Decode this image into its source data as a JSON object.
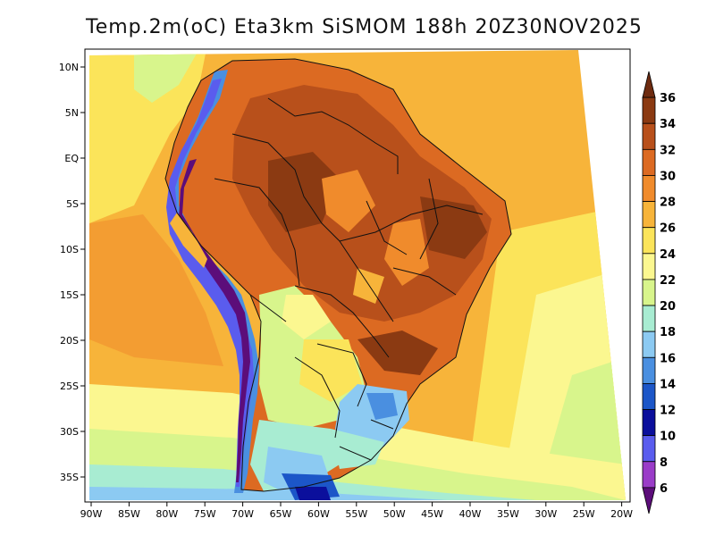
{
  "title": "Temp.2m(oC) Eta3km SiSMOM 188h 20Z30NOV2025",
  "map": {
    "lon_ticks": [
      "90W",
      "85W",
      "80W",
      "75W",
      "70W",
      "65W",
      "60W",
      "55W",
      "50W",
      "45W",
      "40W",
      "35W",
      "30W",
      "25W",
      "20W"
    ],
    "lat_ticks": [
      "10N",
      "5N",
      "EQ",
      "5S",
      "10S",
      "15S",
      "20S",
      "25S",
      "30S",
      "35S"
    ]
  },
  "colorbar": {
    "labels": [
      "36",
      "34",
      "32",
      "30",
      "28",
      "26",
      "24",
      "22",
      "20",
      "18",
      "16",
      "14",
      "12",
      "10",
      "8",
      "6"
    ],
    "colors": [
      "#6e2b10",
      "#8b3a12",
      "#b8501b",
      "#dc6a22",
      "#f08b2c",
      "#f7b43a",
      "#fbe45a",
      "#fbf790",
      "#d8f58c",
      "#a8ecd2",
      "#8ccaf2",
      "#4a8fe0",
      "#1c56c8",
      "#0b0f9c",
      "#5a5cee",
      "#9a3cc8",
      "#5c0d7a"
    ]
  }
}
